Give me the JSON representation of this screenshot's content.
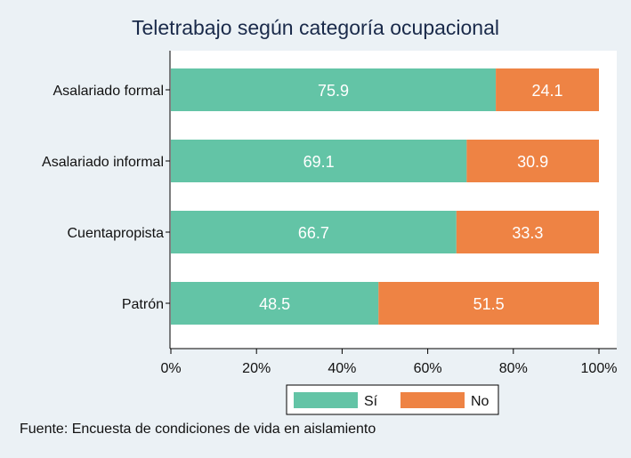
{
  "chart_data": {
    "type": "bar",
    "orientation": "horizontal",
    "stacked": true,
    "title": "Teletrabajo según categoría ocupacional",
    "categories": [
      "Asalariado formal",
      "Asalariado informal",
      "Cuentapropista",
      "Patrón"
    ],
    "series": [
      {
        "name": "Sí",
        "values": [
          75.9,
          69.1,
          66.7,
          48.5
        ],
        "labels": [
          "75.9",
          "69.1",
          "66.7",
          "48.5"
        ],
        "color": "#63c4a6"
      },
      {
        "name": "No",
        "values": [
          24.1,
          30.9,
          33.3,
          51.5
        ],
        "labels": [
          "24.1",
          "30.9",
          "33.3",
          "51.5"
        ],
        "color": "#ee8344"
      }
    ],
    "xlim": [
      0,
      100
    ],
    "xticks": [
      0,
      20,
      40,
      60,
      80,
      100
    ],
    "xtick_labels": [
      "0%",
      "20%",
      "40%",
      "60%",
      "80%",
      "100%"
    ],
    "grid": false,
    "legend_position": "bottom-center",
    "source": "Fuente: Encuesta de condiciones de vida en aislamiento"
  },
  "colors": {
    "background": "#ebf1f5",
    "plot_area": "#ffffff",
    "title_color": "#1a2a4a"
  }
}
